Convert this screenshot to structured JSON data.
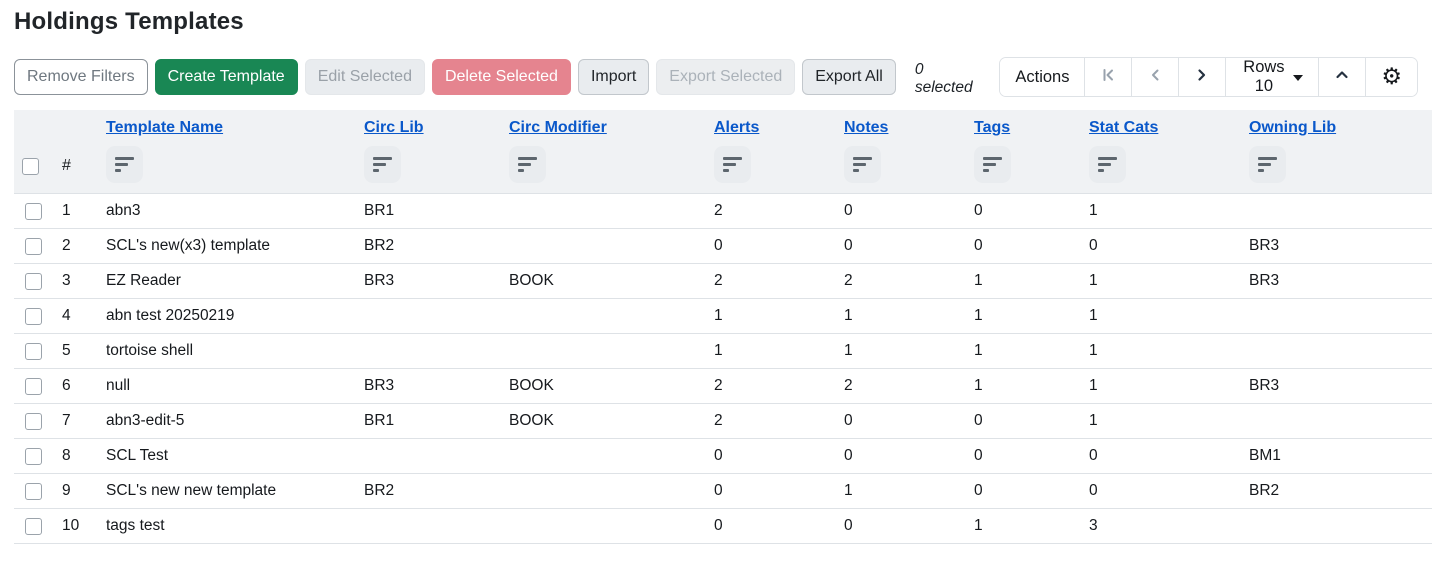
{
  "page": {
    "title": "Holdings Templates"
  },
  "toolbar": {
    "remove_filters_label": "Remove Filters",
    "create_template_label": "Create Template",
    "edit_selected_label": "Edit Selected",
    "delete_selected_label": "Delete Selected",
    "import_label": "Import",
    "export_selected_label": "Export Selected",
    "export_all_label": "Export All",
    "selected_count_label": "0 selected",
    "actions_label": "Actions",
    "rows_per_page_label": "Rows 10",
    "gear_glyph": "⚙"
  },
  "colors": {
    "create_green": "#198754",
    "delete_pink": "#e5848f",
    "header_link_blue": "#0a58ca",
    "header_bg": "#f0f2f4",
    "row_border": "#dee2e6"
  },
  "table": {
    "index_header": "#",
    "columns": [
      {
        "key": "name",
        "label": "Template Name"
      },
      {
        "key": "circ_lib",
        "label": "Circ Lib"
      },
      {
        "key": "circ_modifier",
        "label": "Circ Modifier"
      },
      {
        "key": "alerts",
        "label": "Alerts"
      },
      {
        "key": "notes",
        "label": "Notes"
      },
      {
        "key": "tags",
        "label": "Tags"
      },
      {
        "key": "stat_cats",
        "label": "Stat Cats"
      },
      {
        "key": "owning_lib",
        "label": "Owning Lib"
      }
    ],
    "rows": [
      {
        "num": "1",
        "name": "abn3",
        "circ_lib": "BR1",
        "circ_modifier": "",
        "alerts": "2",
        "notes": "0",
        "tags": "0",
        "stat_cats": "1",
        "owning_lib": ""
      },
      {
        "num": "2",
        "name": "SCL's new(x3) template",
        "circ_lib": "BR2",
        "circ_modifier": "",
        "alerts": "0",
        "notes": "0",
        "tags": "0",
        "stat_cats": "0",
        "owning_lib": "BR3"
      },
      {
        "num": "3",
        "name": "EZ Reader",
        "circ_lib": "BR3",
        "circ_modifier": "BOOK",
        "alerts": "2",
        "notes": "2",
        "tags": "1",
        "stat_cats": "1",
        "owning_lib": "BR3"
      },
      {
        "num": "4",
        "name": "abn test 20250219",
        "circ_lib": "",
        "circ_modifier": "",
        "alerts": "1",
        "notes": "1",
        "tags": "1",
        "stat_cats": "1",
        "owning_lib": ""
      },
      {
        "num": "5",
        "name": "tortoise shell",
        "circ_lib": "",
        "circ_modifier": "",
        "alerts": "1",
        "notes": "1",
        "tags": "1",
        "stat_cats": "1",
        "owning_lib": ""
      },
      {
        "num": "6",
        "name": "null",
        "circ_lib": "BR3",
        "circ_modifier": "BOOK",
        "alerts": "2",
        "notes": "2",
        "tags": "1",
        "stat_cats": "1",
        "owning_lib": "BR3"
      },
      {
        "num": "7",
        "name": "abn3-edit-5",
        "circ_lib": "BR1",
        "circ_modifier": "BOOK",
        "alerts": "2",
        "notes": "0",
        "tags": "0",
        "stat_cats": "1",
        "owning_lib": ""
      },
      {
        "num": "8",
        "name": "SCL Test",
        "circ_lib": "",
        "circ_modifier": "",
        "alerts": "0",
        "notes": "0",
        "tags": "0",
        "stat_cats": "0",
        "owning_lib": "BM1"
      },
      {
        "num": "9",
        "name": "SCL's new new template",
        "circ_lib": "BR2",
        "circ_modifier": "",
        "alerts": "0",
        "notes": "1",
        "tags": "0",
        "stat_cats": "0",
        "owning_lib": "BR2"
      },
      {
        "num": "10",
        "name": "tags test",
        "circ_lib": "",
        "circ_modifier": "",
        "alerts": "0",
        "notes": "0",
        "tags": "1",
        "stat_cats": "3",
        "owning_lib": ""
      }
    ]
  }
}
